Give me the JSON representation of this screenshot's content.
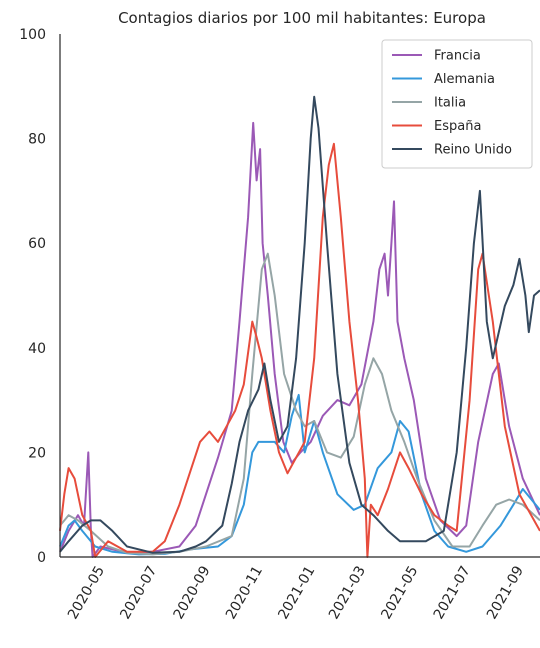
{
  "chart_data": {
    "type": "line",
    "title": "Contagios diarios por 100 mil habitantes: Europa",
    "xlabel": "",
    "ylabel": "",
    "ylim": [
      0,
      100
    ],
    "yticks": [
      0,
      20,
      40,
      60,
      80,
      100
    ],
    "xlim": [
      "2020-03-15",
      "2021-09-25"
    ],
    "xticks": [
      "2020-05",
      "2020-07",
      "2020-09",
      "2020-11",
      "2021-01",
      "2021-03",
      "2021-05",
      "2021-07",
      "2021-09"
    ],
    "legend_position": "top-right",
    "grid": false,
    "series": [
      {
        "name": "Francia",
        "color": "#9b59b6",
        "points": [
          [
            "2020-03-15",
            1
          ],
          [
            "2020-03-25",
            5
          ],
          [
            "2020-04-05",
            8
          ],
          [
            "2020-04-12",
            6
          ],
          [
            "2020-04-17",
            20
          ],
          [
            "2020-04-20",
            5
          ],
          [
            "2020-04-22",
            0
          ],
          [
            "2020-05-01",
            2
          ],
          [
            "2020-06-01",
            0.8
          ],
          [
            "2020-07-01",
            1
          ],
          [
            "2020-08-01",
            2
          ],
          [
            "2020-08-20",
            6
          ],
          [
            "2020-09-01",
            12
          ],
          [
            "2020-09-15",
            19
          ],
          [
            "2020-10-01",
            28
          ],
          [
            "2020-10-10",
            45
          ],
          [
            "2020-10-20",
            65
          ],
          [
            "2020-10-26",
            83
          ],
          [
            "2020-10-30",
            72
          ],
          [
            "2020-11-03",
            78
          ],
          [
            "2020-11-06",
            60
          ],
          [
            "2020-11-12",
            50
          ],
          [
            "2020-11-20",
            35
          ],
          [
            "2020-11-30",
            22
          ],
          [
            "2020-12-10",
            18
          ],
          [
            "2020-12-20",
            20
          ],
          [
            "2021-01-01",
            22
          ],
          [
            "2021-01-15",
            27
          ],
          [
            "2021-02-01",
            30
          ],
          [
            "2021-02-15",
            29
          ],
          [
            "2021-03-01",
            33
          ],
          [
            "2021-03-15",
            45
          ],
          [
            "2021-03-22",
            55
          ],
          [
            "2021-03-28",
            58
          ],
          [
            "2021-04-01",
            50
          ],
          [
            "2021-04-05",
            60
          ],
          [
            "2021-04-08",
            68
          ],
          [
            "2021-04-12",
            45
          ],
          [
            "2021-04-20",
            38
          ],
          [
            "2021-05-01",
            30
          ],
          [
            "2021-05-15",
            15
          ],
          [
            "2021-06-01",
            7
          ],
          [
            "2021-06-20",
            4
          ],
          [
            "2021-07-01",
            6
          ],
          [
            "2021-07-15",
            22
          ],
          [
            "2021-08-01",
            35
          ],
          [
            "2021-08-08",
            37
          ],
          [
            "2021-08-20",
            25
          ],
          [
            "2021-09-05",
            15
          ],
          [
            "2021-09-25",
            8
          ]
        ]
      },
      {
        "name": "Alemania",
        "color": "#3498db",
        "points": [
          [
            "2020-03-15",
            2
          ],
          [
            "2020-03-25",
            6
          ],
          [
            "2020-04-01",
            7
          ],
          [
            "2020-04-10",
            5
          ],
          [
            "2020-04-25",
            2
          ],
          [
            "2020-05-15",
            1
          ],
          [
            "2020-06-15",
            0.5
          ],
          [
            "2020-07-15",
            0.6
          ],
          [
            "2020-08-15",
            1.5
          ],
          [
            "2020-09-15",
            2
          ],
          [
            "2020-10-01",
            4
          ],
          [
            "2020-10-15",
            10
          ],
          [
            "2020-10-25",
            20
          ],
          [
            "2020-11-01",
            22
          ],
          [
            "2020-11-20",
            22
          ],
          [
            "2020-12-01",
            20
          ],
          [
            "2020-12-10",
            27
          ],
          [
            "2020-12-18",
            31
          ],
          [
            "2020-12-25",
            20
          ],
          [
            "2021-01-05",
            26
          ],
          [
            "2021-01-15",
            20
          ],
          [
            "2021-02-01",
            12
          ],
          [
            "2021-02-20",
            9
          ],
          [
            "2021-03-05",
            10
          ],
          [
            "2021-03-20",
            17
          ],
          [
            "2021-04-05",
            20
          ],
          [
            "2021-04-15",
            26
          ],
          [
            "2021-04-25",
            24
          ],
          [
            "2021-05-10",
            12
          ],
          [
            "2021-05-25",
            5
          ],
          [
            "2021-06-10",
            2
          ],
          [
            "2021-07-01",
            1
          ],
          [
            "2021-07-20",
            2
          ],
          [
            "2021-08-10",
            6
          ],
          [
            "2021-08-25",
            10
          ],
          [
            "2021-09-05",
            13
          ],
          [
            "2021-09-25",
            9
          ]
        ]
      },
      {
        "name": "Italia",
        "color": "#95a5a6",
        "points": [
          [
            "2020-03-15",
            6
          ],
          [
            "2020-03-25",
            8
          ],
          [
            "2020-04-05",
            7
          ],
          [
            "2020-04-20",
            5
          ],
          [
            "2020-05-10",
            2
          ],
          [
            "2020-06-01",
            0.8
          ],
          [
            "2020-07-01",
            0.5
          ],
          [
            "2020-08-01",
            1
          ],
          [
            "2020-09-01",
            2
          ],
          [
            "2020-10-01",
            4
          ],
          [
            "2020-10-15",
            15
          ],
          [
            "2020-10-25",
            35
          ],
          [
            "2020-11-05",
            55
          ],
          [
            "2020-11-12",
            58
          ],
          [
            "2020-11-20",
            50
          ],
          [
            "2020-12-01",
            35
          ],
          [
            "2020-12-15",
            28
          ],
          [
            "2020-12-25",
            25
          ],
          [
            "2021-01-05",
            26
          ],
          [
            "2021-01-20",
            20
          ],
          [
            "2021-02-05",
            19
          ],
          [
            "2021-02-20",
            23
          ],
          [
            "2021-03-05",
            33
          ],
          [
            "2021-03-15",
            38
          ],
          [
            "2021-03-25",
            35
          ],
          [
            "2021-04-05",
            28
          ],
          [
            "2021-04-20",
            22
          ],
          [
            "2021-05-05",
            15
          ],
          [
            "2021-05-25",
            7
          ],
          [
            "2021-06-15",
            2
          ],
          [
            "2021-07-05",
            2
          ],
          [
            "2021-07-20",
            6
          ],
          [
            "2021-08-05",
            10
          ],
          [
            "2021-08-20",
            11
          ],
          [
            "2021-09-05",
            10
          ],
          [
            "2021-09-25",
            7
          ]
        ]
      },
      {
        "name": "España",
        "color": "#e74c3c",
        "points": [
          [
            "2020-03-15",
            5
          ],
          [
            "2020-03-20",
            12
          ],
          [
            "2020-03-25",
            17
          ],
          [
            "2020-04-01",
            15
          ],
          [
            "2020-04-10",
            8
          ],
          [
            "2020-04-20",
            5
          ],
          [
            "2020-04-25",
            0
          ],
          [
            "2020-05-10",
            3
          ],
          [
            "2020-06-01",
            1
          ],
          [
            "2020-07-01",
            1
          ],
          [
            "2020-07-15",
            3
          ],
          [
            "2020-08-01",
            10
          ],
          [
            "2020-08-15",
            17
          ],
          [
            "2020-08-25",
            22
          ],
          [
            "2020-09-05",
            24
          ],
          [
            "2020-09-15",
            22
          ],
          [
            "2020-09-25",
            25
          ],
          [
            "2020-10-05",
            28
          ],
          [
            "2020-10-15",
            33
          ],
          [
            "2020-10-25",
            45
          ],
          [
            "2020-10-30",
            42
          ],
          [
            "2020-11-05",
            38
          ],
          [
            "2020-11-15",
            28
          ],
          [
            "2020-11-25",
            20
          ],
          [
            "2020-12-05",
            16
          ],
          [
            "2020-12-15",
            19
          ],
          [
            "2020-12-25",
            22
          ],
          [
            "2021-01-05",
            38
          ],
          [
            "2021-01-15",
            65
          ],
          [
            "2021-01-22",
            75
          ],
          [
            "2021-01-28",
            79
          ],
          [
            "2021-02-05",
            65
          ],
          [
            "2021-02-15",
            45
          ],
          [
            "2021-02-25",
            30
          ],
          [
            "2021-03-05",
            15
          ],
          [
            "2021-03-08",
            0
          ],
          [
            "2021-03-12",
            10
          ],
          [
            "2021-03-20",
            8
          ],
          [
            "2021-04-01",
            13
          ],
          [
            "2021-04-15",
            20
          ],
          [
            "2021-04-25",
            17
          ],
          [
            "2021-05-10",
            12
          ],
          [
            "2021-05-25",
            8
          ],
          [
            "2021-06-10",
            6
          ],
          [
            "2021-06-20",
            5
          ],
          [
            "2021-07-05",
            30
          ],
          [
            "2021-07-15",
            55
          ],
          [
            "2021-07-20",
            58
          ],
          [
            "2021-08-01",
            45
          ],
          [
            "2021-08-15",
            25
          ],
          [
            "2021-09-01",
            12
          ],
          [
            "2021-09-25",
            5
          ]
        ]
      },
      {
        "name": "Reino Unido",
        "color": "#34495e",
        "points": [
          [
            "2020-03-15",
            1
          ],
          [
            "2020-03-25",
            3
          ],
          [
            "2020-04-10",
            6
          ],
          [
            "2020-04-20",
            7
          ],
          [
            "2020-05-01",
            7
          ],
          [
            "2020-05-15",
            5
          ],
          [
            "2020-06-01",
            2
          ],
          [
            "2020-07-01",
            0.8
          ],
          [
            "2020-08-01",
            1
          ],
          [
            "2020-08-20",
            2
          ],
          [
            "2020-09-01",
            3
          ],
          [
            "2020-09-20",
            6
          ],
          [
            "2020-10-01",
            14
          ],
          [
            "2020-10-10",
            22
          ],
          [
            "2020-10-20",
            28
          ],
          [
            "2020-11-01",
            32
          ],
          [
            "2020-11-08",
            37
          ],
          [
            "2020-11-15",
            30
          ],
          [
            "2020-11-25",
            22
          ],
          [
            "2020-12-05",
            25
          ],
          [
            "2020-12-15",
            38
          ],
          [
            "2020-12-25",
            60
          ],
          [
            "2021-01-01",
            80
          ],
          [
            "2021-01-05",
            88
          ],
          [
            "2021-01-10",
            82
          ],
          [
            "2021-01-20",
            60
          ],
          [
            "2021-02-01",
            35
          ],
          [
            "2021-02-15",
            18
          ],
          [
            "2021-03-01",
            10
          ],
          [
            "2021-03-15",
            8
          ],
          [
            "2021-04-01",
            5
          ],
          [
            "2021-04-15",
            3
          ],
          [
            "2021-05-15",
            3
          ],
          [
            "2021-06-05",
            5
          ],
          [
            "2021-06-20",
            20
          ],
          [
            "2021-07-01",
            40
          ],
          [
            "2021-07-10",
            60
          ],
          [
            "2021-07-17",
            70
          ],
          [
            "2021-07-25",
            45
          ],
          [
            "2021-08-01",
            38
          ],
          [
            "2021-08-15",
            48
          ],
          [
            "2021-08-25",
            52
          ],
          [
            "2021-09-01",
            57
          ],
          [
            "2021-09-08",
            50
          ],
          [
            "2021-09-12",
            43
          ],
          [
            "2021-09-18",
            50
          ],
          [
            "2021-09-25",
            51
          ]
        ]
      }
    ]
  }
}
